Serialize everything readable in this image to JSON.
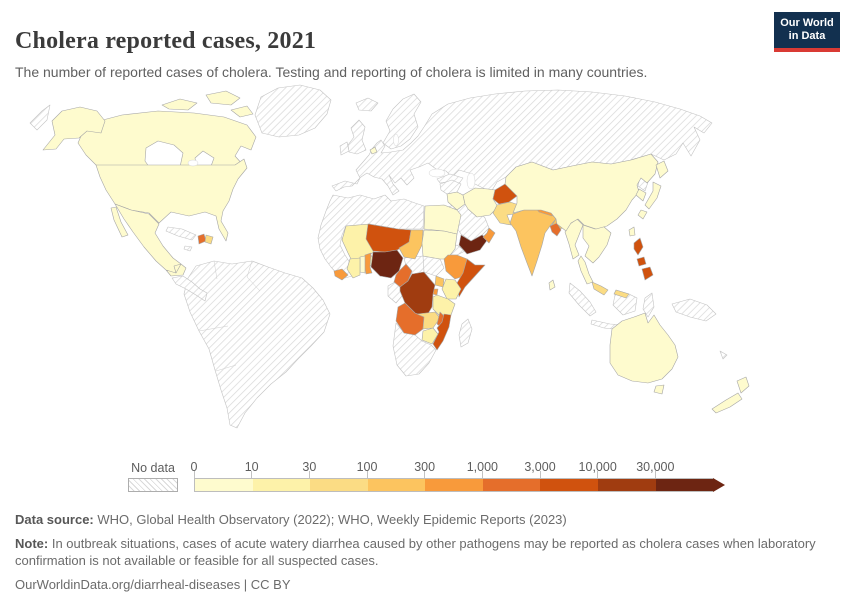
{
  "header": {
    "title": "Cholera reported cases, 2021",
    "subtitle": "The number of reported cases of cholera. Testing and reporting of cholera is limited in many countries.",
    "logo": {
      "line1": "Our World",
      "line2": "in Data",
      "bg_color": "#12304f",
      "accent_color": "#d93a34"
    }
  },
  "legend": {
    "no_data_label": "No data",
    "ticks": [
      "0",
      "10",
      "30",
      "100",
      "300",
      "1,000",
      "3,000",
      "10,000",
      "30,000"
    ],
    "colors": [
      "#fefbce",
      "#fdf2a9",
      "#fbdc84",
      "#fcc45f",
      "#f89a3b",
      "#e56e2b",
      "#d0520e",
      "#a03c10",
      "#6d2512"
    ]
  },
  "footer": {
    "source_label": "Data source:",
    "source_text": " WHO, Global Health Observatory (2022); WHO, Weekly Epidemic Reports (2023)",
    "note_label": "Note:",
    "note_text": " In outbreak situations, cases of acute watery diarrhea caused by other pathogens may be reported as cholera cases when laboratory confirmation is not available or feasible for all suspected cases.",
    "citation": "OurWorldinData.org/diarrheal-diseases | CC BY"
  },
  "chart_data": {
    "type": "heatmap",
    "subtype": "choropleth-world-map",
    "title": "Cholera reported cases, 2021",
    "unit": "reported cholera cases",
    "bin_thresholds": [
      "0",
      "10",
      "30",
      "100",
      "300",
      "1,000",
      "3,000",
      "10,000",
      "30,000"
    ],
    "bin_ranges": [
      "0-10",
      "10-30",
      "30-100",
      "100-300",
      "300-1,000",
      "1,000-3,000",
      "3,000-10,000",
      "10,000-30,000",
      "30,000+"
    ],
    "bin_colors": [
      "#fefbce",
      "#fdf2a9",
      "#fbdc84",
      "#fcc45f",
      "#f89a3b",
      "#e56e2b",
      "#d0520e",
      "#a03c10",
      "#6d2512"
    ],
    "country_bins": {
      "United States": 0,
      "Canada": 0,
      "Mexico": 0,
      "Haiti": 5,
      "Dominican Republic": 2,
      "Netherlands": 0,
      "Egypt": 0,
      "Sudan": 0,
      "Mali": 1,
      "Burkina Faso": 1,
      "Ghana": 1,
      "Togo": 0,
      "Benin": 4,
      "Liberia": 4,
      "Niger": 6,
      "Nigeria": 8,
      "Chad": 3,
      "Cameroon": 5,
      "Ethiopia": 4,
      "Somalia": 6,
      "Kenya": 1,
      "Uganda": 3,
      "Burundi": 4,
      "Tanzania": 1,
      "Democratic Republic of Congo": 7,
      "Angola": 5,
      "Zambia": 2,
      "Malawi": 5,
      "Mozambique": 6,
      "Zimbabwe": 1,
      "Yemen": 8,
      "Oman": 4,
      "Iraq": 0,
      "Iran": 0,
      "Afghanistan": 6,
      "Pakistan": 2,
      "India": 3,
      "Nepal": 4,
      "Bangladesh": 5,
      "Sri Lanka": 0,
      "Myanmar": 0,
      "Thailand": 0,
      "Malaysia": 2,
      "China": 0,
      "South Korea": 0,
      "Japan": 0,
      "Taiwan": 0,
      "Philippines": 6,
      "Australia": 0,
      "New Zealand": 0
    },
    "no_data_regions": [
      "Greenland",
      "Russia",
      "Europe",
      "Central Asia",
      "Scandinavia",
      "United Kingdom",
      "Ireland",
      "Iceland",
      "Turkey",
      "Levant",
      "Saudi Arabia",
      "North Korea",
      "South America",
      "Central America",
      "Cuba",
      "Jamaica",
      "Morocco, Algeria, Libya and West African coast",
      "Central African Republic",
      "South Sudan",
      "Eritrea and Djibouti",
      "Republic of Congo and Gabon",
      "Namibia, Botswana and South Africa",
      "Madagascar",
      "Indonesia",
      "Papua New Guinea",
      "New Caledonia"
    ]
  }
}
